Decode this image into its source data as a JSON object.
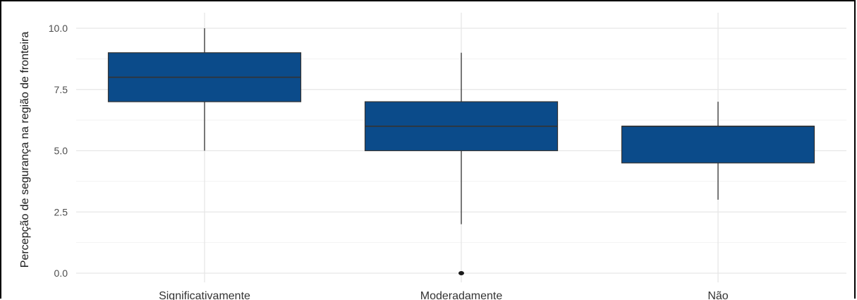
{
  "chart_data": {
    "type": "box",
    "ylabel": "Percepção de segurança na região de fronteira",
    "xlabel": "",
    "ylim": [
      0,
      10
    ],
    "y_ticks": [
      "0.0",
      "2.5",
      "5.0",
      "7.5",
      "10.0"
    ],
    "y_tick_values": [
      0,
      2.5,
      5,
      7.5,
      10
    ],
    "grid": true,
    "box_color": "#0b4b8a",
    "categories": [
      "Significativamente",
      "Moderadamente",
      "Não"
    ],
    "boxes": [
      {
        "category": "Significativamente",
        "whisker_low": 5.0,
        "q1": 7.0,
        "median": 8.0,
        "q3": 9.0,
        "whisker_high": 10.0,
        "outliers": []
      },
      {
        "category": "Moderadamente",
        "whisker_low": 2.0,
        "q1": 5.0,
        "median": 6.0,
        "q3": 7.0,
        "whisker_high": 9.0,
        "outliers": [
          0.0
        ]
      },
      {
        "category": "Não",
        "whisker_low": 3.0,
        "q1": 4.5,
        "median": 6.0,
        "q3": 6.0,
        "whisker_high": 7.0,
        "outliers": []
      }
    ]
  }
}
